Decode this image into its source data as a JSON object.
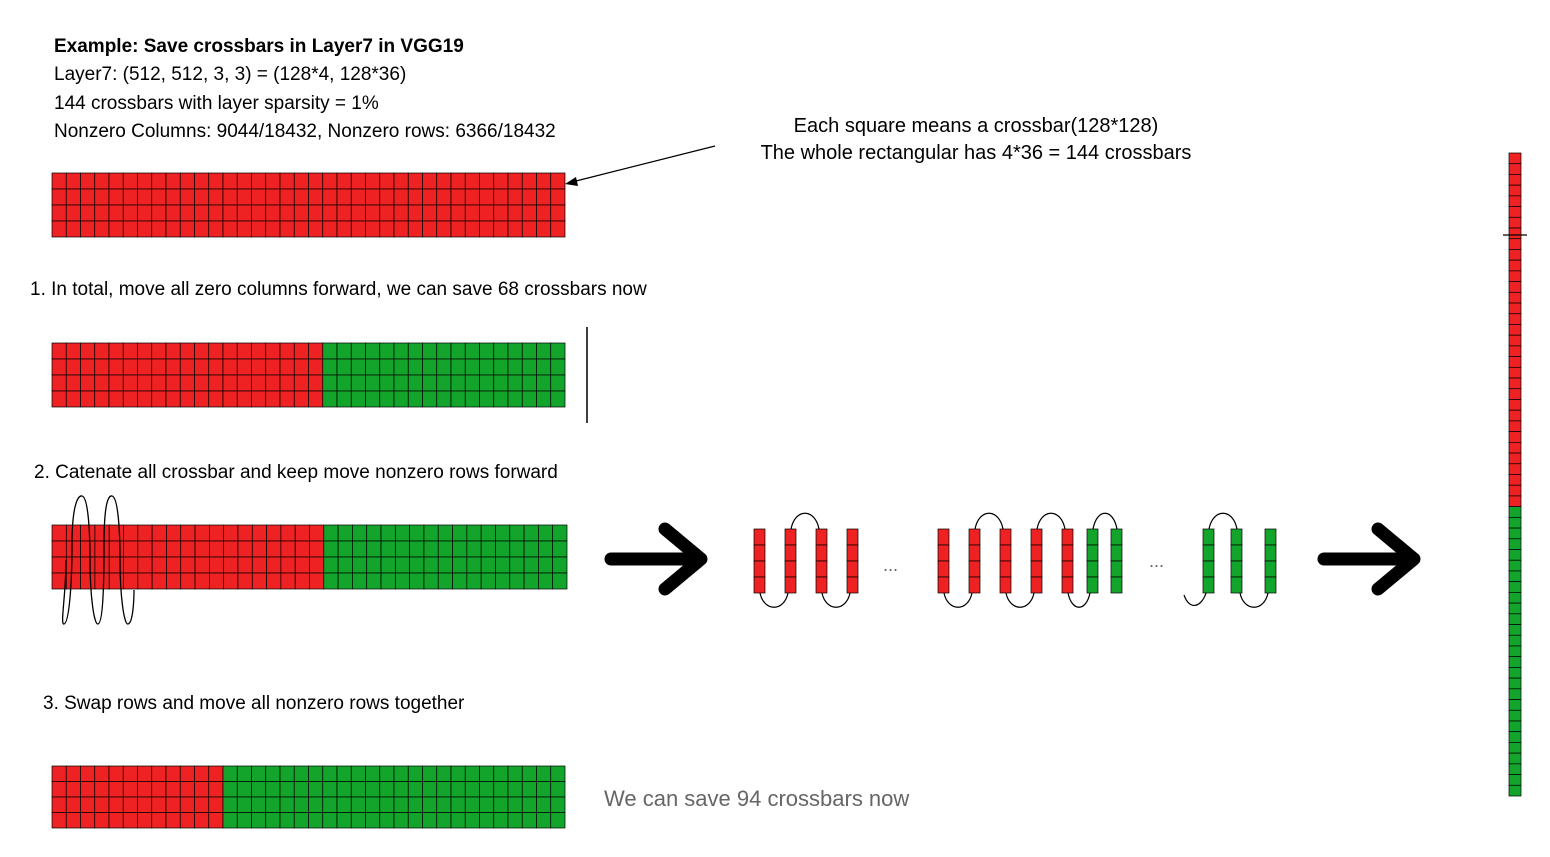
{
  "header": {
    "title": "Example: Save crossbars in Layer7 in VGG19",
    "line_shape": "Layer7: (512, 512, 3, 3) = (128*4, 128*36)",
    "line_sparsity": "144 crossbars with layer sparsity = 1%",
    "line_nonzero": "Nonzero Columns: 9044/18432, Nonzero rows: 6366/18432"
  },
  "annotation": {
    "line1": "Each square means a crossbar(128*128)",
    "line2": "The whole rectangular has 4*36 = 144 crossbars"
  },
  "steps": {
    "step1": "1. In total, move all zero columns forward, we can save 68 crossbars now",
    "step2": "2. Catenate all crossbar and keep move nonzero rows forward",
    "step3": "3. Swap rows and move all nonzero rows together"
  },
  "result": "We can save 94 crossbars now",
  "ellipsis": "...",
  "colors": {
    "zero": "#ee2222",
    "nonzero": "#13a52b",
    "line": "#000000"
  },
  "grid": {
    "rows": 4,
    "cols": 36
  },
  "grids": [
    {
      "id": "grid-original",
      "red_cols": 36,
      "green_cols": 0
    },
    {
      "id": "grid-step1",
      "red_cols": 19,
      "green_cols": 17
    },
    {
      "id": "grid-step2",
      "red_cols": 19,
      "green_cols": 17
    },
    {
      "id": "grid-step3",
      "red_cols": 12,
      "green_cols": 24
    }
  ],
  "vertical_bar": {
    "total_cells": 60,
    "red_cells": 33,
    "green_cells": 27
  },
  "strips": [
    "red",
    "red",
    "red",
    "red",
    "red",
    "red",
    "red",
    "red",
    "red",
    "green",
    "green",
    "green",
    "green",
    "green"
  ]
}
